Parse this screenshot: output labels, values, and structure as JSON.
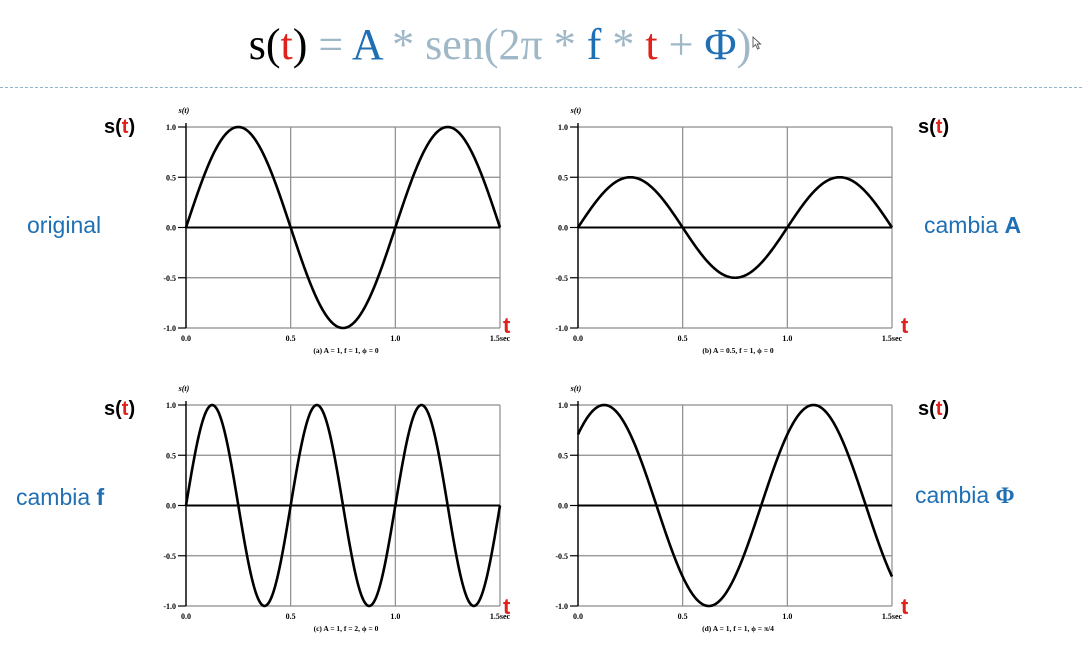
{
  "formula": {
    "s": "s(",
    "t1": "t",
    "close1": ")",
    "eq": " = ",
    "A": "A",
    "op1": " * ",
    "sen": "sen(2π",
    "op2": " * ",
    "f": "f",
    "op3": " * ",
    "t2": "t",
    "plus": " + ",
    "phi": "Φ",
    "close2": ")"
  },
  "labels": {
    "st_s": "s(",
    "st_t": "t",
    "st_close": ")",
    "original": "original",
    "cambia": "cambia ",
    "cambia_A": "A",
    "cambia_f": "f",
    "cambia_phi": "Φ",
    "t_axis": "t"
  },
  "colors": {
    "red": "#e0221c",
    "blue": "#1f6fb5",
    "gray": "#9fb8c8"
  },
  "chart_data": [
    {
      "type": "line",
      "function": "A*sin(2*pi*f*t + phi)",
      "params": {
        "A": 1,
        "f": 1,
        "phi": 0
      },
      "ylabel": "s(t)",
      "xlim": [
        0,
        1.5
      ],
      "ylim": [
        -1,
        1
      ],
      "xticks": [
        "0.0",
        "0.5",
        "1.0",
        "1.5sec"
      ],
      "yticks": [
        "1.0",
        "0.5",
        "0.0",
        "-0.5",
        "-1.0"
      ],
      "caption": "(a) A = 1, f = 1, ϕ = 0",
      "grid": true
    },
    {
      "type": "line",
      "function": "A*sin(2*pi*f*t + phi)",
      "params": {
        "A": 0.5,
        "f": 1,
        "phi": 0
      },
      "ylabel": "s(t)",
      "xlim": [
        0,
        1.5
      ],
      "ylim": [
        -1,
        1
      ],
      "xticks": [
        "0.0",
        "0.5",
        "1.0",
        "1.5sec"
      ],
      "yticks": [
        "1.0",
        "0.5",
        "0.0",
        "-0.5",
        "-1.0"
      ],
      "caption": "(b) A = 0.5, f = 1, ϕ = 0",
      "grid": true
    },
    {
      "type": "line",
      "function": "A*sin(2*pi*f*t + phi)",
      "params": {
        "A": 1,
        "f": 2,
        "phi": 0
      },
      "ylabel": "s(t)",
      "xlim": [
        0,
        1.5
      ],
      "ylim": [
        -1,
        1
      ],
      "xticks": [
        "0.0",
        "0.5",
        "1.0",
        "1.5sec"
      ],
      "yticks": [
        "1.0",
        "0.5",
        "0.0",
        "-0.5",
        "-1.0"
      ],
      "caption": "(c) A = 1, f = 2, ϕ = 0",
      "grid": true
    },
    {
      "type": "line",
      "function": "A*sin(2*pi*f*t + phi)",
      "params": {
        "A": 1,
        "f": 1,
        "phi": 0.7854
      },
      "ylabel": "s(t)",
      "xlim": [
        0,
        1.5
      ],
      "ylim": [
        -1,
        1
      ],
      "xticks": [
        "0.0",
        "0.5",
        "1.0",
        "1.5sec"
      ],
      "yticks": [
        "1.0",
        "0.5",
        "0.0",
        "-0.5",
        "-1.0"
      ],
      "caption": "(d) A = 1, f = 1, ϕ = π/4",
      "grid": true
    }
  ]
}
